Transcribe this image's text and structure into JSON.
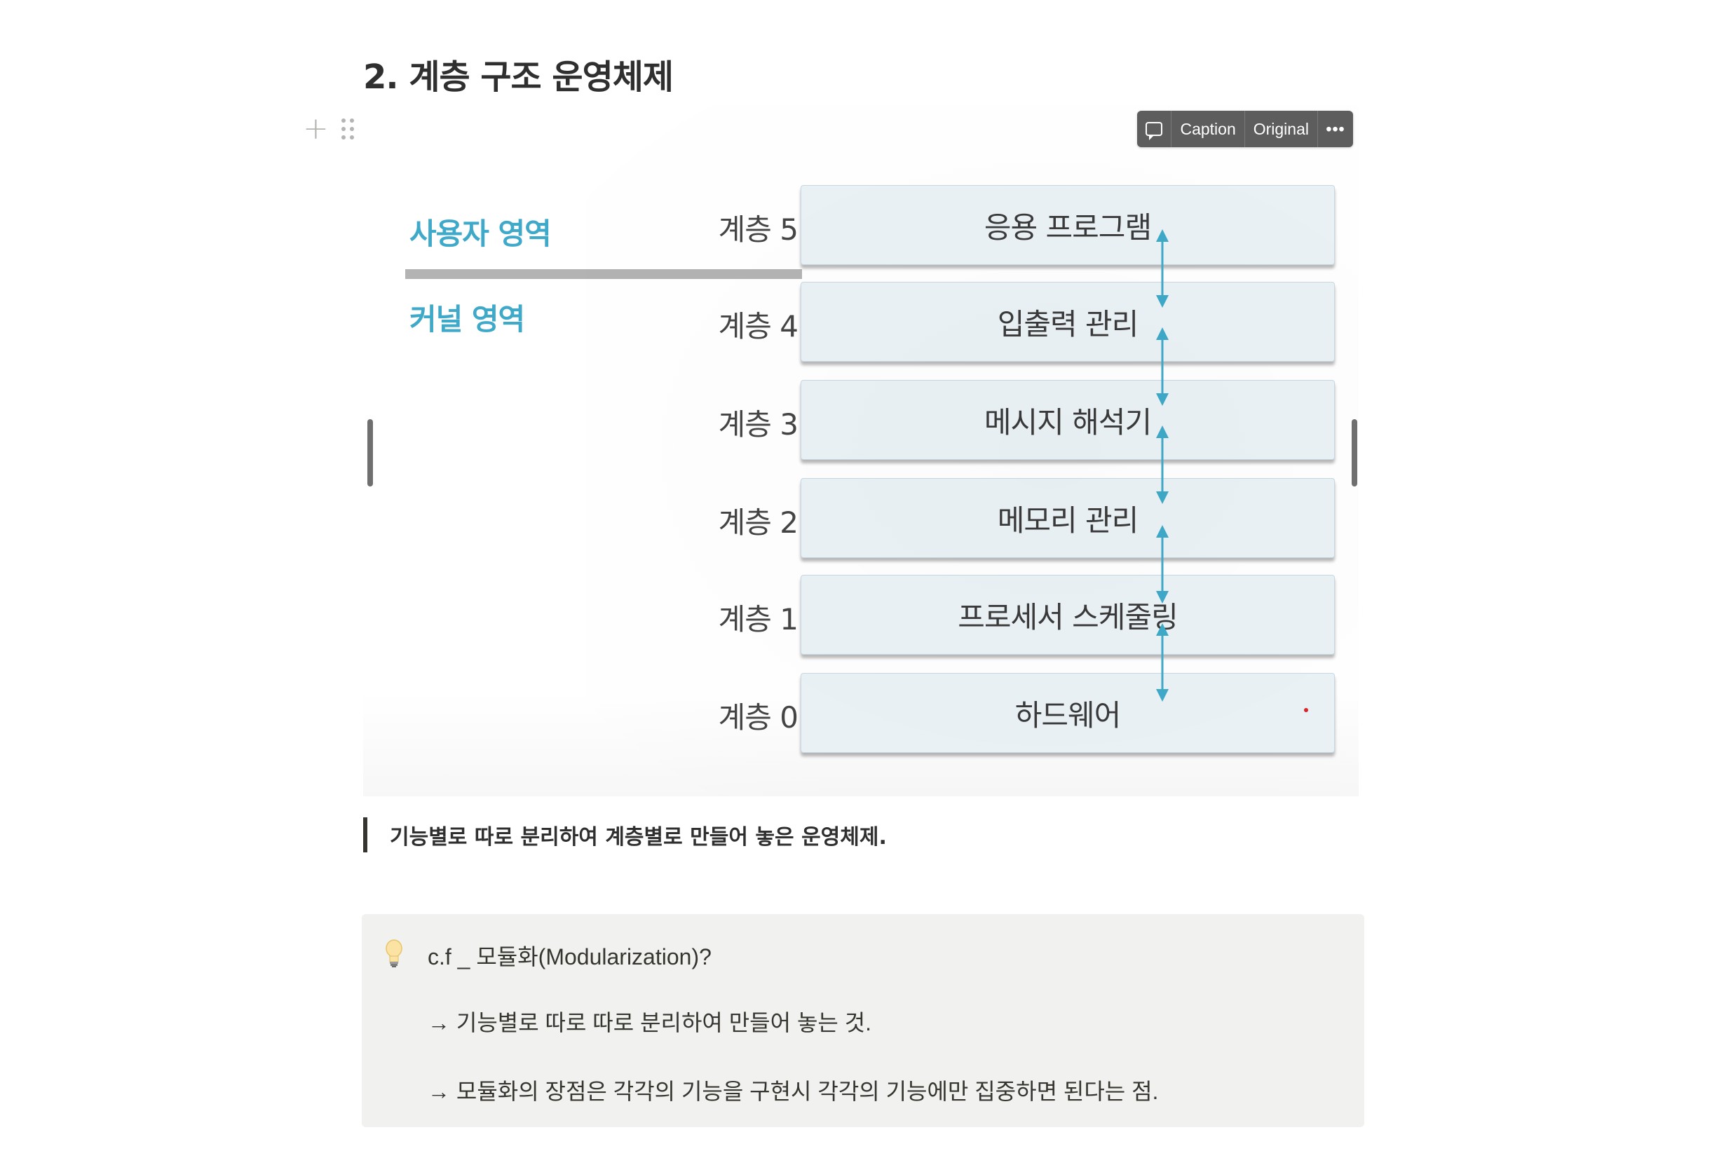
{
  "page": {
    "heading": "2. 계층 구조 운영체제"
  },
  "image_toolbar": {
    "comment_icon": "comment-icon",
    "caption_label": "Caption",
    "original_label": "Original",
    "more_label": "•••"
  },
  "diagram": {
    "user_area": "사용자 영역",
    "kernel_area": "커널 영역",
    "layers": [
      {
        "label": "계층 5",
        "name": "응용 프로그램"
      },
      {
        "label": "계층 4",
        "name": "입출력 관리"
      },
      {
        "label": "계층 3",
        "name": "메시지 해석기"
      },
      {
        "label": "계층 2",
        "name": "메모리 관리"
      },
      {
        "label": "계층 1",
        "name": "프로세서 스케줄링"
      },
      {
        "label": "계층 0",
        "name": "하드웨어"
      }
    ],
    "colors": {
      "area_text": "#3fa9c9",
      "box_fill": "#eaf2f6",
      "arrow": "#3fa9c9"
    }
  },
  "quote": {
    "text": "기능별로 따로 분리하여 계층별로 만들어 놓은 운영체제."
  },
  "callout": {
    "icon": "lightbulb-icon",
    "title": "c.f _ 모듈화(Modularization)?",
    "line1": "→ 기능별로 따로 따로 분리하여 만들어 놓는 것.",
    "line2": "→ 모듈화의 장점은 각각의 기능을 구현시 각각의 기능에만 집중하면 된다는 점."
  }
}
